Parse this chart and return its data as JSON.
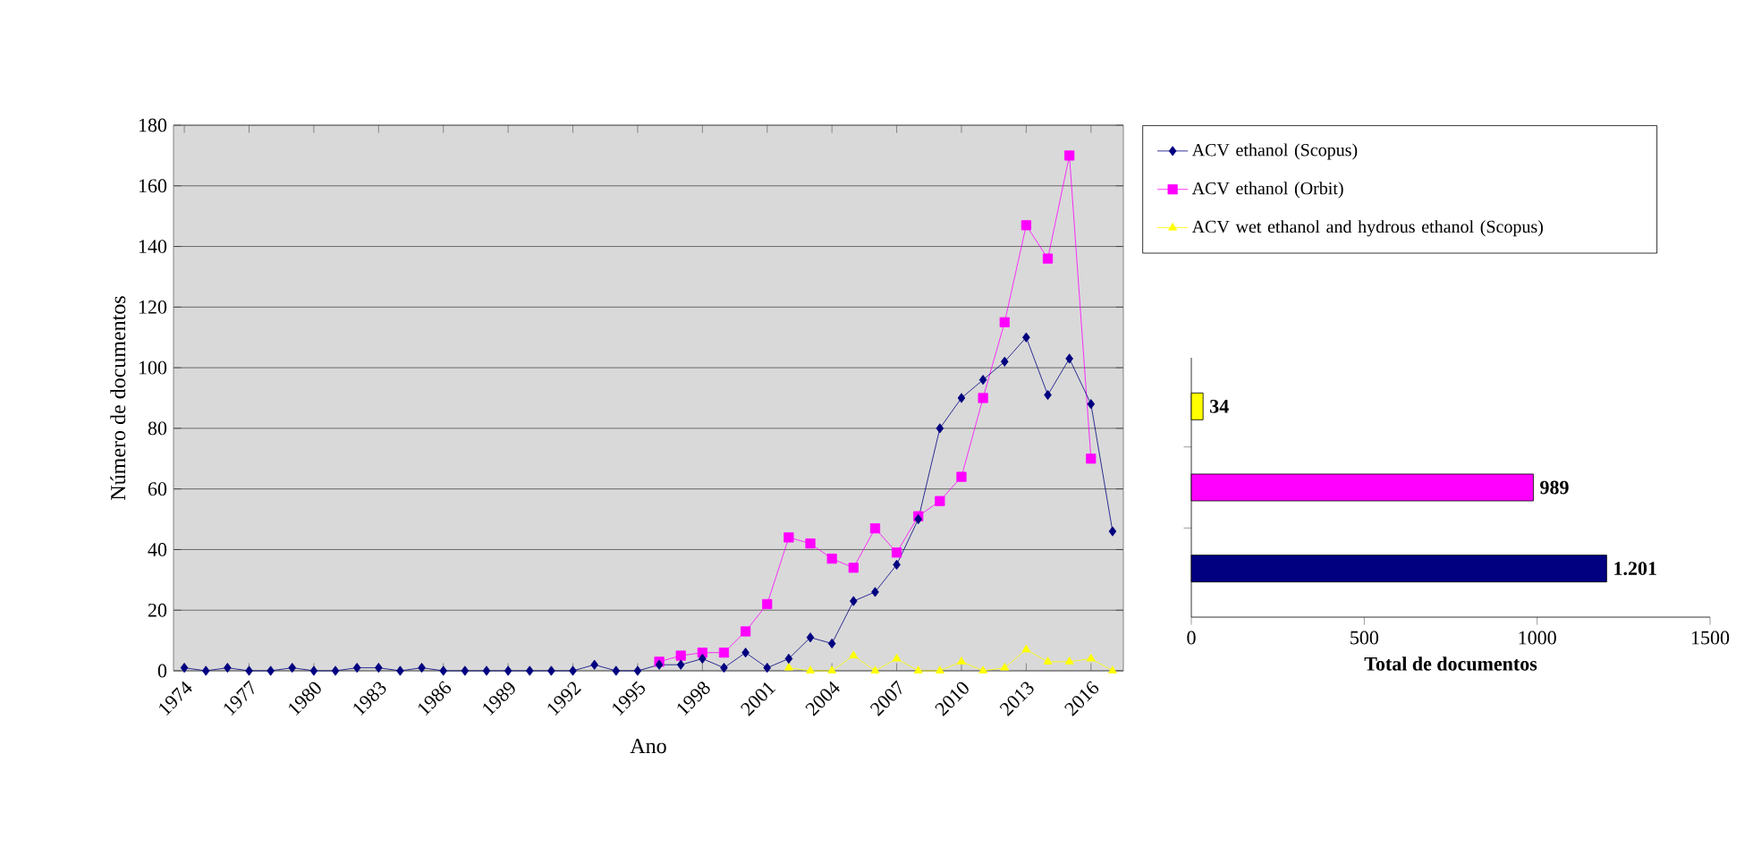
{
  "chart_data": [
    {
      "type": "line",
      "xlabel": "Ano",
      "ylabel": "Número de documentos",
      "x": [
        1974,
        1975,
        1976,
        1977,
        1978,
        1979,
        1980,
        1981,
        1982,
        1983,
        1984,
        1985,
        1986,
        1987,
        1988,
        1989,
        1990,
        1991,
        1992,
        1993,
        1994,
        1995,
        1996,
        1997,
        1998,
        1999,
        2000,
        2001,
        2002,
        2003,
        2004,
        2005,
        2006,
        2007,
        2008,
        2009,
        2010,
        2011,
        2012,
        2013,
        2014,
        2015,
        2016,
        2017
      ],
      "series": [
        {
          "name": "ACV ethanol (Scopus)",
          "color": "#000080",
          "marker": "diamond",
          "values": [
            1,
            0,
            1,
            0,
            0,
            1,
            0,
            0,
            1,
            1,
            0,
            1,
            0,
            0,
            0,
            0,
            0,
            0,
            0,
            2,
            0,
            0,
            2,
            2,
            4,
            1,
            6,
            1,
            4,
            11,
            9,
            23,
            26,
            35,
            50,
            80,
            90,
            96,
            102,
            110,
            91,
            103,
            88,
            46
          ]
        },
        {
          "name": "ACV ethanol (Orbit)",
          "color": "#ff00ff",
          "marker": "square",
          "values": [
            null,
            null,
            null,
            null,
            null,
            null,
            null,
            null,
            null,
            null,
            null,
            null,
            null,
            null,
            null,
            null,
            null,
            null,
            null,
            null,
            null,
            null,
            3,
            5,
            6,
            6,
            13,
            22,
            44,
            42,
            37,
            34,
            47,
            39,
            51,
            56,
            64,
            90,
            115,
            147,
            136,
            170,
            70,
            null
          ]
        },
        {
          "name": "ACV wet ethanol and hydrous ethanol (Scopus)",
          "color": "#ffff00",
          "marker": "triangle",
          "values": [
            null,
            null,
            null,
            null,
            null,
            null,
            null,
            null,
            null,
            null,
            null,
            null,
            null,
            null,
            null,
            null,
            null,
            null,
            null,
            null,
            null,
            null,
            null,
            null,
            null,
            null,
            null,
            null,
            1,
            0,
            0,
            5,
            0,
            4,
            0,
            0,
            3,
            0,
            1,
            7,
            3,
            3,
            4,
            0
          ]
        }
      ],
      "xlim": [
        1973.5,
        2017.5
      ],
      "xticks": [
        1974,
        1977,
        1980,
        1983,
        1986,
        1989,
        1992,
        1995,
        1998,
        2001,
        2004,
        2007,
        2010,
        2013,
        2016
      ],
      "ylim": [
        0,
        180
      ],
      "yticks": [
        0,
        20,
        40,
        60,
        80,
        100,
        120,
        140,
        160,
        180
      ],
      "grid": "y",
      "legend": "right"
    },
    {
      "type": "bar",
      "orientation": "horizontal",
      "xlabel": "Total de documentos",
      "categories": [
        null,
        null,
        null
      ],
      "values": [
        34,
        989,
        1201
      ],
      "colors": [
        "#ffff00",
        "#ff00ff",
        "#000080"
      ],
      "value_labels": [
        "34",
        "989",
        "1.201"
      ],
      "xlim": [
        0,
        1500
      ],
      "xticks": [
        0,
        500,
        1000,
        1500
      ]
    }
  ]
}
